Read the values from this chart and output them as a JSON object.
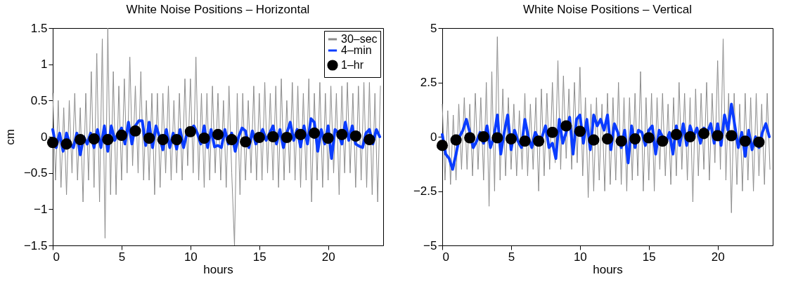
{
  "chart_data": [
    {
      "type": "line",
      "title": "White Noise Positions – Horizontal",
      "xlabel": "hours",
      "ylabel": "cm",
      "xlim": [
        0,
        24
      ],
      "xticks": [
        0,
        5,
        10,
        15,
        20
      ],
      "ylim": [
        -1.5,
        1.5
      ],
      "yticks": [
        -1.5,
        -1,
        -0.5,
        0,
        0.5,
        1,
        1.5
      ],
      "grid": false,
      "legend": "top right",
      "series": [
        {
          "name": "30–sec",
          "color": "#8c8c8c",
          "x": [
            0,
            0.2,
            0.4,
            0.6,
            0.8,
            1,
            1.2,
            1.4,
            1.6,
            1.8,
            2,
            2.2,
            2.4,
            2.6,
            2.8,
            3,
            3.2,
            3.4,
            3.6,
            3.8,
            4,
            4.2,
            4.4,
            4.6,
            4.8,
            5,
            5.2,
            5.4,
            5.6,
            5.8,
            6,
            6.2,
            6.4,
            6.6,
            6.8,
            7,
            7.2,
            7.4,
            7.6,
            7.8,
            8,
            8.2,
            8.4,
            8.6,
            8.8,
            9,
            9.2,
            9.4,
            9.6,
            9.8,
            10,
            10.2,
            10.4,
            10.6,
            10.8,
            11,
            11.2,
            11.4,
            11.6,
            11.8,
            12,
            12.2,
            12.4,
            12.6,
            12.8,
            13,
            13.2,
            13.4,
            13.6,
            13.8,
            14,
            14.2,
            14.4,
            14.6,
            14.8,
            15,
            15.2,
            15.4,
            15.6,
            15.8,
            16,
            16.2,
            16.4,
            16.6,
            16.8,
            17,
            17.2,
            17.4,
            17.6,
            17.8,
            18,
            18.2,
            18.4,
            18.6,
            18.8,
            19,
            19.2,
            19.4,
            19.6,
            19.8,
            20,
            20.2,
            20.4,
            20.6,
            20.8,
            21,
            21.2,
            21.4,
            21.6,
            21.8,
            22,
            22.2,
            22.4,
            22.6,
            22.8,
            23,
            23.2,
            23.4,
            23.6,
            23.8
          ],
          "values": [
            0.6,
            -0.6,
            0.5,
            -0.7,
            0.4,
            -0.8,
            0.5,
            -0.5,
            0.6,
            -0.6,
            0.4,
            -0.9,
            0.6,
            -0.6,
            0.9,
            -0.7,
            1.15,
            -0.9,
            1.35,
            -1.4,
            1.5,
            -0.8,
            0.9,
            -0.8,
            0.7,
            -0.6,
            0.8,
            -0.5,
            1.1,
            -0.4,
            0.7,
            -0.5,
            0.9,
            -0.6,
            0.5,
            -0.6,
            0.6,
            -0.8,
            0.6,
            -0.7,
            0.6,
            -0.5,
            0.7,
            -0.6,
            0.5,
            -0.5,
            0.6,
            -0.6,
            0.8,
            -0.4,
            0.8,
            -0.5,
            1.1,
            -0.6,
            0.6,
            -0.7,
            0.6,
            -0.6,
            0.7,
            -0.5,
            0.6,
            -0.6,
            0.5,
            -0.7,
            0.7,
            -0.5,
            -1.5,
            0.6,
            -0.8,
            0.6,
            -0.6,
            0.5,
            -0.5,
            0.7,
            -0.6,
            0.6,
            -0.6,
            0.75,
            -0.5,
            0.6,
            -0.6,
            0.7,
            -0.7,
            0.8,
            -0.6,
            0.5,
            -0.5,
            0.75,
            -0.6,
            0.7,
            -0.7,
            0.6,
            -0.6,
            0.8,
            -0.9,
            0.6,
            -0.6,
            0.75,
            -0.7,
            0.6,
            -0.6,
            0.7,
            -0.5,
            0.6,
            -0.8,
            0.7,
            -0.5,
            0.75,
            -0.5,
            0.6,
            -0.7,
            0.7,
            -0.6,
            0.75,
            -0.7,
            0.75,
            -0.8,
            0.6,
            -0.9,
            0.7
          ]
        },
        {
          "name": "4–min",
          "color": "#0a3cff",
          "x": [
            0,
            0.25,
            0.5,
            0.75,
            1,
            1.25,
            1.5,
            1.75,
            2,
            2.25,
            2.5,
            2.75,
            3,
            3.25,
            3.5,
            3.75,
            4,
            4.25,
            4.5,
            4.75,
            5,
            5.25,
            5.5,
            5.75,
            6,
            6.25,
            6.5,
            6.75,
            7,
            7.25,
            7.5,
            7.75,
            8,
            8.25,
            8.5,
            8.75,
            9,
            9.25,
            9.5,
            9.75,
            10,
            10.25,
            10.5,
            10.75,
            11,
            11.25,
            11.5,
            11.75,
            12,
            12.25,
            12.5,
            12.75,
            13,
            13.25,
            13.5,
            13.75,
            14,
            14.25,
            14.5,
            14.75,
            15,
            15.25,
            15.5,
            15.75,
            16,
            16.25,
            16.5,
            16.75,
            17,
            17.25,
            17.5,
            17.75,
            18,
            18.25,
            18.5,
            18.75,
            19,
            19.25,
            19.5,
            19.75,
            20,
            20.25,
            20.5,
            20.75,
            21,
            21.25,
            21.5,
            21.75,
            22,
            22.25,
            22.5,
            22.75,
            23,
            23.25,
            23.5,
            23.75
          ],
          "values": [
            0.1,
            -0.15,
            0.05,
            -0.2,
            0.05,
            -0.1,
            -0.15,
            0.05,
            -0.25,
            0.0,
            -0.1,
            0.05,
            -0.15,
            0.1,
            -0.15,
            0.15,
            -0.2,
            0.15,
            -0.05,
            0.05,
            0.12,
            -0.1,
            0.2,
            -0.1,
            0.15,
            0.22,
            0.22,
            -0.12,
            0.2,
            -0.15,
            0.15,
            0.0,
            -0.18,
            0.1,
            -0.15,
            0.05,
            -0.17,
            0.1,
            -0.15,
            0.05,
            0.1,
            0.15,
            0.05,
            -0.1,
            0.15,
            -0.15,
            0.1,
            -0.14,
            -0.12,
            -0.15,
            0.1,
            -0.1,
            0.05,
            -0.2,
            0.0,
            0.12,
            0.08,
            -0.15,
            0.08,
            -0.1,
            0.0,
            0.1,
            -0.05,
            0.05,
            0.15,
            -0.1,
            0.1,
            -0.15,
            0.05,
            0.2,
            -0.05,
            0.1,
            -0.14,
            0.15,
            -0.1,
            0.25,
            0.2,
            -0.2,
            0.1,
            -0.1,
            0.15,
            -0.3,
            0.1,
            0.05,
            -0.1,
            0.2,
            -0.05,
            0.15,
            -0.1,
            -0.13,
            -0.15,
            0.05,
            0.1,
            -0.1,
            0.1,
            0.0
          ]
        },
        {
          "name": "1–hr",
          "color": "#000000",
          "type": "scatter",
          "marker": "circle",
          "x": [
            0,
            1,
            2,
            3,
            4,
            5,
            6,
            7,
            8,
            9,
            10,
            11,
            12,
            13,
            14,
            15,
            16,
            17,
            18,
            19,
            20,
            21,
            22,
            23
          ],
          "values": [
            -0.08,
            -0.1,
            -0.04,
            -0.03,
            -0.04,
            0.02,
            0.08,
            -0.02,
            -0.04,
            -0.04,
            0.07,
            -0.02,
            0.03,
            -0.04,
            -0.07,
            -0.01,
            0.0,
            -0.01,
            0.03,
            0.05,
            -0.02,
            0.03,
            0.01,
            -0.04
          ]
        }
      ]
    },
    {
      "type": "line",
      "title": "White Noise Positions – Vertical",
      "xlabel": "hours",
      "xlim": [
        0,
        24
      ],
      "xticks": [
        0,
        5,
        10,
        15,
        20
      ],
      "ylim": [
        -5,
        5
      ],
      "yticks": [
        -5,
        -2.5,
        0,
        2.5,
        5
      ],
      "grid": false,
      "series": [
        {
          "color": "#8c8c8c",
          "x": [
            0,
            0.2,
            0.4,
            0.6,
            0.8,
            1,
            1.2,
            1.4,
            1.6,
            1.8,
            2,
            2.2,
            2.4,
            2.6,
            2.8,
            3,
            3.2,
            3.4,
            3.6,
            3.8,
            4,
            4.2,
            4.4,
            4.6,
            4.8,
            5,
            5.2,
            5.4,
            5.6,
            5.8,
            6,
            6.2,
            6.4,
            6.6,
            6.8,
            7,
            7.2,
            7.4,
            7.6,
            7.8,
            8,
            8.2,
            8.4,
            8.6,
            8.8,
            9,
            9.2,
            9.4,
            9.6,
            9.8,
            10,
            10.2,
            10.4,
            10.6,
            10.8,
            11,
            11.2,
            11.4,
            11.6,
            11.8,
            12,
            12.2,
            12.4,
            12.6,
            12.8,
            13,
            13.2,
            13.4,
            13.6,
            13.8,
            14,
            14.2,
            14.4,
            14.6,
            14.8,
            15,
            15.2,
            15.4,
            15.6,
            15.8,
            16,
            16.2,
            16.4,
            16.6,
            16.8,
            17,
            17.2,
            17.4,
            17.6,
            17.8,
            18,
            18.2,
            18.4,
            18.6,
            18.8,
            19,
            19.2,
            19.4,
            19.6,
            19.8,
            20,
            20.2,
            20.4,
            20.6,
            20.8,
            21,
            21.2,
            21.4,
            21.6,
            21.8,
            22,
            22.2,
            22.4,
            22.6,
            22.8,
            23,
            23.2,
            23.4,
            23.6,
            23.8
          ],
          "values": [
            1.5,
            -2.0,
            1.2,
            -2.2,
            1.0,
            -2.0,
            1.5,
            -1.5,
            1.8,
            -1.5,
            1.5,
            -1.8,
            2.0,
            -1.5,
            1.8,
            -2.0,
            2.5,
            -3.2,
            3.0,
            -2.5,
            4.6,
            -2.0,
            2.2,
            -1.8,
            1.8,
            -1.5,
            1.5,
            -1.8,
            1.2,
            -1.5,
            2.0,
            -1.8,
            1.5,
            -1.5,
            1.8,
            -2.5,
            2.2,
            -1.8,
            2.0,
            -1.5,
            2.5,
            -1.2,
            3.5,
            -1.5,
            2.8,
            -1.0,
            2.2,
            -1.5,
            2.5,
            -1.2,
            3.2,
            -1.8,
            1.8,
            -2.8,
            1.5,
            -2.5,
            1.8,
            -2.0,
            1.5,
            -2.5,
            2.0,
            -2.2,
            1.8,
            -2.0,
            2.5,
            -2.2,
            1.8,
            -2.5,
            1.8,
            -2.0,
            2.0,
            -1.8,
            3.0,
            -2.5,
            1.8,
            -2.0,
            2.0,
            -2.5,
            1.8,
            -1.5,
            2.0,
            -1.8,
            1.5,
            -2.2,
            1.8,
            -1.8,
            2.5,
            -1.5,
            2.0,
            -2.0,
            1.8,
            -3.0,
            2.2,
            -1.8,
            2.0,
            -1.5,
            2.5,
            -2.0,
            2.0,
            -1.2,
            3.5,
            -1.5,
            4.5,
            -2.0,
            2.0,
            -3.5,
            2.0,
            -2.2,
            1.5,
            -2.5,
            2.0,
            -2.0,
            1.8,
            -2.5,
            2.0,
            -1.8,
            1.5,
            -2.2,
            2.0,
            -1.5
          ]
        },
        {
          "color": "#0a3cff",
          "x": [
            0,
            0.25,
            0.5,
            0.75,
            1,
            1.25,
            1.5,
            1.75,
            2,
            2.25,
            2.5,
            2.75,
            3,
            3.25,
            3.5,
            3.75,
            4,
            4.25,
            4.5,
            4.75,
            5,
            5.25,
            5.5,
            5.75,
            6,
            6.25,
            6.5,
            6.75,
            7,
            7.25,
            7.5,
            7.75,
            8,
            8.25,
            8.5,
            8.75,
            9,
            9.25,
            9.5,
            9.75,
            10,
            10.25,
            10.5,
            10.75,
            11,
            11.25,
            11.5,
            11.75,
            12,
            12.25,
            12.5,
            12.75,
            13,
            13.25,
            13.5,
            13.75,
            14,
            14.25,
            14.5,
            14.75,
            15,
            15.25,
            15.5,
            15.75,
            16,
            16.25,
            16.5,
            16.75,
            17,
            17.25,
            17.5,
            17.75,
            18,
            18.25,
            18.5,
            18.75,
            19,
            19.25,
            19.5,
            19.75,
            20,
            20.25,
            20.5,
            20.75,
            21,
            21.25,
            21.5,
            21.75,
            22,
            22.25,
            22.5,
            22.75,
            23,
            23.25,
            23.5,
            23.75
          ],
          "values": [
            0.1,
            -0.8,
            -1.0,
            -1.5,
            -0.8,
            0.0,
            0.3,
            0.8,
            0.2,
            -0.5,
            -0.2,
            0.2,
            -0.3,
            0.5,
            -0.5,
            0.0,
            1.0,
            -0.8,
            0.2,
            1.0,
            -0.6,
            0.3,
            -0.2,
            -0.5,
            0.8,
            0.0,
            -0.5,
            0.2,
            -0.1,
            0.0,
            0.5,
            -0.5,
            -0.3,
            -1.0,
            0.8,
            -0.3,
            0.2,
            0.9,
            -0.8,
            0.8,
            1.0,
            -0.3,
            0.8,
            -0.6,
            1.0,
            0.5,
            0.8,
            0.3,
            1.0,
            -0.6,
            0.6,
            0.2,
            -0.5,
            0.3,
            -1.2,
            0.5,
            -0.5,
            0.3,
            0.2,
            -0.4,
            0.3,
            0.5,
            -0.8,
            0.3,
            0.0,
            -0.3,
            0.2,
            -0.8,
            0.5,
            -0.4,
            0.6,
            -0.4,
            0.5,
            0.0,
            0.4,
            -0.3,
            0.4,
            0.2,
            0.6,
            -0.3,
            0.6,
            -0.4,
            1.0,
            0.3,
            1.5,
            0.5,
            -0.5,
            0.2,
            -0.9,
            0.3,
            -0.6,
            0.0,
            -0.5,
            0.2,
            0.6,
            0.0
          ]
        },
        {
          "color": "#000000",
          "type": "scatter",
          "marker": "circle",
          "x": [
            0,
            1,
            2,
            3,
            4,
            5,
            6,
            7,
            8,
            9,
            10,
            11,
            12,
            13,
            14,
            15,
            16,
            17,
            18,
            19,
            20,
            21,
            22,
            23
          ],
          "values": [
            -0.4,
            -0.15,
            -0.05,
            0.0,
            -0.05,
            -0.1,
            -0.2,
            -0.2,
            0.2,
            0.5,
            0.25,
            -0.15,
            -0.1,
            -0.2,
            -0.1,
            -0.05,
            -0.2,
            0.1,
            0.0,
            0.15,
            0.05,
            0.05,
            -0.2,
            -0.25
          ]
        }
      ]
    }
  ]
}
